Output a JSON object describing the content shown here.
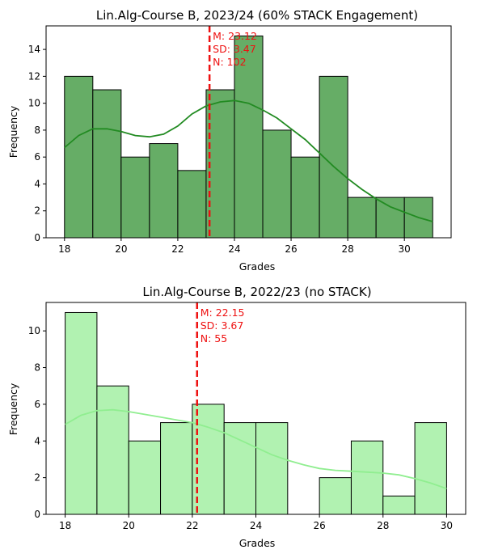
{
  "chart_data": [
    {
      "type": "bar",
      "title": "Lin.Alg-Course B, 2023/24 (60% STACK Engagement)",
      "xlabel": "Grades",
      "ylabel": "Frequency",
      "xlim": [
        17.35,
        31.65
      ],
      "ylim": [
        0,
        15.75
      ],
      "xticks": [
        18,
        20,
        22,
        24,
        26,
        28,
        30
      ],
      "yticks": [
        0,
        2,
        4,
        6,
        8,
        10,
        12,
        14
      ],
      "bin_edges": [
        18,
        19,
        20,
        21,
        22,
        23,
        24,
        25,
        26,
        27,
        28,
        29,
        30,
        31
      ],
      "values": [
        12,
        11,
        6,
        7,
        5,
        11,
        15,
        8,
        6,
        12,
        3,
        3,
        3
      ],
      "bar_color": "#66ad66",
      "kde_color": "#228b22",
      "kde": {
        "x": [
          18,
          18.5,
          19,
          19.5,
          20,
          20.5,
          21,
          21.5,
          22,
          22.5,
          23,
          23.5,
          24,
          24.5,
          25,
          25.5,
          26,
          26.5,
          27,
          27.5,
          28,
          28.5,
          29,
          29.5,
          30,
          30.5,
          31
        ],
        "y": [
          6.7,
          7.6,
          8.1,
          8.1,
          7.9,
          7.6,
          7.5,
          7.7,
          8.3,
          9.2,
          9.8,
          10.1,
          10.2,
          10.0,
          9.5,
          8.9,
          8.1,
          7.3,
          6.3,
          5.3,
          4.4,
          3.6,
          2.9,
          2.3,
          1.9,
          1.5,
          1.2
        ]
      },
      "mean_line": {
        "x": 23.12,
        "color": "#ee1111"
      },
      "annotation": [
        "M: 23.12",
        "SD: 3.47",
        "N: 102"
      ],
      "grid": false,
      "legend": "none"
    },
    {
      "type": "bar",
      "title": "Lin.Alg-Course B, 2022/23 (no STACK)",
      "xlabel": "Grades",
      "ylabel": "Frequency",
      "xlim": [
        17.4,
        30.6
      ],
      "ylim": [
        0,
        11.55
      ],
      "xticks": [
        18,
        20,
        22,
        24,
        26,
        28,
        30
      ],
      "yticks": [
        0,
        2,
        4,
        6,
        8,
        10
      ],
      "bin_edges": [
        18,
        19,
        20,
        21,
        22,
        23,
        24,
        25,
        26,
        27,
        28,
        29,
        30
      ],
      "values": [
        11,
        7,
        4,
        5,
        6,
        5,
        5,
        0,
        2,
        4,
        1,
        5
      ],
      "bar_color": "#b1f2b1",
      "kde_color": "#90ee90",
      "kde": {
        "x": [
          18,
          18.5,
          19,
          19.5,
          20,
          20.5,
          21,
          21.5,
          22,
          22.5,
          23,
          23.5,
          24,
          24.5,
          25,
          25.5,
          26,
          26.5,
          27,
          27.5,
          28,
          28.5,
          29,
          29.5,
          30
        ],
        "y": [
          4.9,
          5.4,
          5.65,
          5.7,
          5.6,
          5.45,
          5.3,
          5.15,
          5.0,
          4.75,
          4.45,
          4.05,
          3.65,
          3.25,
          2.95,
          2.7,
          2.5,
          2.4,
          2.35,
          2.3,
          2.25,
          2.15,
          1.95,
          1.7,
          1.4
        ]
      },
      "mean_line": {
        "x": 22.15,
        "color": "#ee1111"
      },
      "annotation": [
        "M: 22.15",
        "SD: 3.67",
        "N: 55"
      ],
      "grid": false,
      "legend": "none"
    }
  ]
}
